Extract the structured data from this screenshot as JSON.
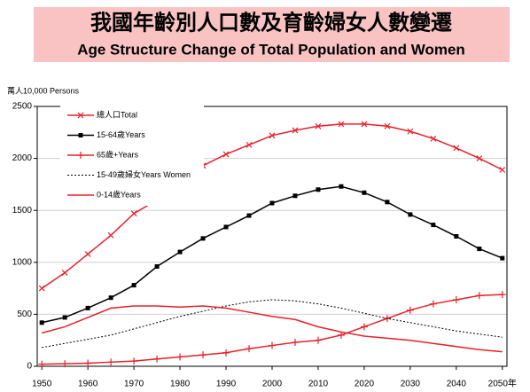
{
  "chart_data": {
    "type": "line",
    "title": "我國年齡別人口數及育齡婦女人數變遷",
    "subtitle": "Age Structure Change of Total Population and Women",
    "y_label": "萬人10,000 Persons",
    "x": [
      1950,
      1955,
      1960,
      1965,
      1970,
      1975,
      1980,
      1985,
      1990,
      1995,
      2000,
      2005,
      2010,
      2015,
      2020,
      2025,
      2030,
      2035,
      2040,
      2045,
      2050
    ],
    "series": [
      {
        "name": "總人口Total",
        "color": "#e8202a",
        "marker": "x",
        "dashed": false,
        "values": [
          750,
          900,
          1080,
          1260,
          1470,
          1600,
          1790,
          1930,
          2040,
          2130,
          2220,
          2270,
          2310,
          2330,
          2330,
          2310,
          2260,
          2190,
          2100,
          2000,
          1890
        ]
      },
      {
        "name": "15-64歲Years",
        "color": "#000000",
        "marker": "square",
        "dashed": false,
        "values": [
          420,
          470,
          560,
          660,
          780,
          960,
          1100,
          1230,
          1340,
          1450,
          1570,
          1640,
          1700,
          1730,
          1670,
          1580,
          1460,
          1360,
          1250,
          1130,
          1040
        ]
      },
      {
        "name": "65歲+Years",
        "color": "#e8202a",
        "marker": "plus",
        "dashed": false,
        "values": [
          20,
          25,
          30,
          40,
          50,
          70,
          90,
          110,
          130,
          170,
          200,
          230,
          250,
          300,
          380,
          460,
          540,
          600,
          640,
          680,
          690
        ]
      },
      {
        "name": "15-49歲婦女Years Women",
        "color": "#000000",
        "marker": "none",
        "dashed": true,
        "values": [
          180,
          220,
          260,
          300,
          360,
          420,
          480,
          530,
          580,
          620,
          640,
          630,
          600,
          560,
          510,
          460,
          420,
          380,
          340,
          310,
          280
        ]
      },
      {
        "name": "0-14歲Years",
        "color": "#e8202a",
        "marker": "none",
        "dashed": false,
        "values": [
          320,
          380,
          470,
          560,
          580,
          580,
          570,
          580,
          560,
          520,
          480,
          450,
          380,
          330,
          290,
          270,
          250,
          220,
          190,
          160,
          140
        ]
      }
    ],
    "xlim": [
      1949,
      2051
    ],
    "xticks": [
      1950,
      1960,
      1970,
      1980,
      1990,
      2000,
      2010,
      2020,
      2030,
      2040,
      {
        "value": 2050,
        "label": "2050年"
      }
    ],
    "ylim": [
      0,
      2500
    ],
    "yticks": [
      0,
      500,
      1000,
      1500,
      2000,
      2500
    ],
    "grid": true,
    "legend": "top-left"
  }
}
